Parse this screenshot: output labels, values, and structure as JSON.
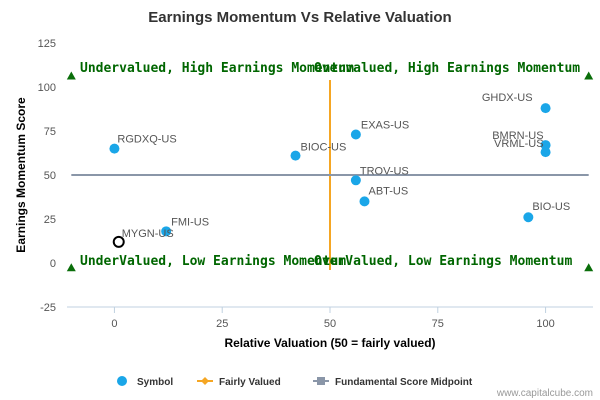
{
  "chart_data": {
    "type": "scatter",
    "title": "Earnings Momentum Vs Relative Valuation",
    "xlabel": "Relative Valuation (50 = fairly valued)",
    "ylabel": "Earnings Momentum Score",
    "xlim": [
      -11,
      111
    ],
    "ylim": [
      -25,
      125
    ],
    "x_ticks": [
      0,
      25,
      50,
      75,
      100
    ],
    "y_ticks": [
      -25,
      0,
      25,
      50,
      75,
      100,
      125
    ],
    "grid": false,
    "legend_position": "bottom",
    "fairly_valued_x": 50,
    "midpoint_y": 50,
    "series": [
      {
        "name": "Symbol",
        "color": "#1aa6e8",
        "points": [
          {
            "label": "GHDX-US",
            "x": 100,
            "y": 88
          },
          {
            "label": "RGDXQ-US",
            "x": 0,
            "y": 65
          },
          {
            "label": "EXAS-US",
            "x": 56,
            "y": 73
          },
          {
            "label": "BMRN-US",
            "x": 100,
            "y": 67
          },
          {
            "label": "VRML-US",
            "x": 100,
            "y": 63
          },
          {
            "label": "BIOC-US",
            "x": 42,
            "y": 61
          },
          {
            "label": "TROV-US",
            "x": 56,
            "y": 47
          },
          {
            "label": "ABT-US",
            "x": 58,
            "y": 35
          },
          {
            "label": "BIO-US",
            "x": 96,
            "y": 26
          },
          {
            "label": "FMI-US",
            "x": 12,
            "y": 18
          }
        ]
      },
      {
        "name": "Fairly Valued",
        "color": "#f5a623"
      },
      {
        "name": "Fundamental Score Midpoint",
        "color": "#8a96a8"
      }
    ],
    "highlight": {
      "label": "MYGN-US",
      "x": 1,
      "y": 12
    },
    "quadrant_labels": {
      "top_left": "Undervalued, High Earnings Momentum",
      "top_right": "Overvalued, High Earnings Momentum",
      "bottom_left": "UnderValued, Low Earnings Momentum",
      "bottom_right": "OverValued, Low Earnings Momentum"
    },
    "marker_color": "#0a6e0a"
  },
  "credit": "www.capitalcube.com"
}
